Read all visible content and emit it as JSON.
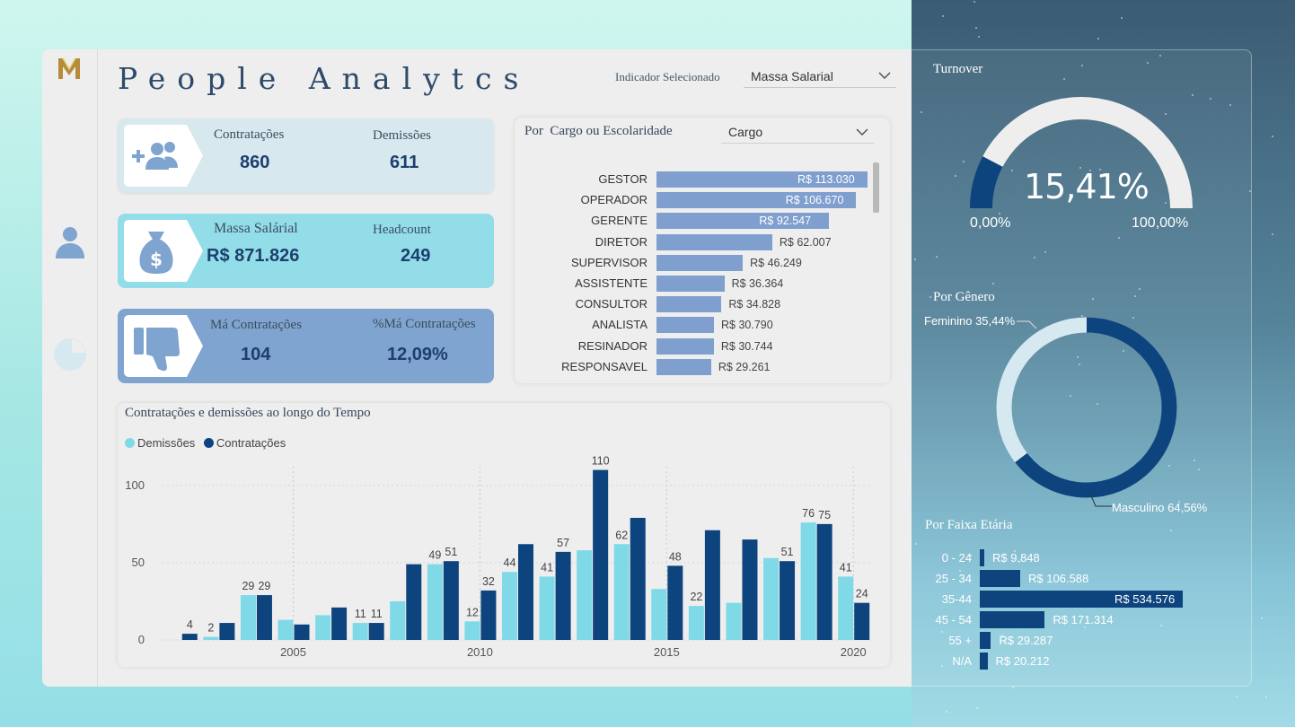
{
  "header": {
    "title": "People Analytcs",
    "indicator_label": "Indicador Selecionado",
    "indicator_value": "Massa Salarial"
  },
  "kpis": {
    "hires_label": "Contratações",
    "hires_value": "860",
    "fires_label": "Demissões",
    "fires_value": "611",
    "payroll_label": "Massa Salárial",
    "payroll_value": "R$ 871.826",
    "headcount_label": "Headcount",
    "headcount_value": "249",
    "bad_hires_label": "Má Contratações",
    "bad_hires_value": "104",
    "bad_hires_pct_label": "%Má Contratações",
    "bad_hires_pct_value": "12,09%"
  },
  "cargo": {
    "title_prefix": "Por",
    "title": "Cargo ou Escolaridade",
    "select_value": "Cargo",
    "rows": [
      {
        "label": "GESTOR",
        "value": 113030,
        "text": "R$ 113.030"
      },
      {
        "label": "OPERADOR",
        "value": 106670,
        "text": "R$ 106.670"
      },
      {
        "label": "GERENTE",
        "value": 92547,
        "text": "R$ 92.547"
      },
      {
        "label": "DIRETOR",
        "value": 62007,
        "text": "R$ 62.007"
      },
      {
        "label": "SUPERVISOR",
        "value": 46249,
        "text": "R$ 46.249"
      },
      {
        "label": "ASSISTENTE",
        "value": 36364,
        "text": "R$ 36.364"
      },
      {
        "label": "CONSULTOR",
        "value": 34828,
        "text": "R$ 34.828"
      },
      {
        "label": "ANALISTA",
        "value": 30790,
        "text": "R$ 30.790"
      },
      {
        "label": "RESINADOR",
        "value": 30744,
        "text": "R$ 30.744"
      },
      {
        "label": "RESPONSAVEL",
        "value": 29261,
        "text": "R$ 29.261"
      }
    ]
  },
  "turnover": {
    "title": "Turnover",
    "value": 15.41,
    "value_text": "15,41%",
    "min_text": "0,00%",
    "max_text": "100,00%"
  },
  "gender": {
    "title": "Por Gênero",
    "feminino_text": "Feminino 35,44%",
    "masculino_text": "Masculino 64,56%",
    "feminino": 35.44,
    "masculino": 64.56
  },
  "age": {
    "title": "Por Faixa Etária",
    "rows": [
      {
        "label": "0 - 24",
        "value": 9848,
        "text": "R$ 9.848"
      },
      {
        "label": "25 - 34",
        "value": 106588,
        "text": "R$ 106.588"
      },
      {
        "label": "35-44",
        "value": 534576,
        "text": "R$ 534.576"
      },
      {
        "label": "45 - 54",
        "value": 171314,
        "text": "R$ 171.314"
      },
      {
        "label": "55 +",
        "value": 29287,
        "text": "R$ 29.287"
      },
      {
        "label": "N/A",
        "value": 20212,
        "text": "R$ 20.212"
      }
    ]
  },
  "colors": {
    "demissoes": "#7fd9e6",
    "contratacoes": "#0d447e",
    "cargo_bar": "#7f9fcf",
    "gauge_fill": "#0d447e",
    "gauge_track": "#efeeee"
  },
  "timeline": {
    "title": "Contratações e demissões ao longo do Tempo",
    "legend_demissoes": "Demissões",
    "legend_contratacoes": "Contratações"
  },
  "chart_data": {
    "type": "bar",
    "title": "Contratações e demissões ao longo do Tempo",
    "x": [
      2002,
      2003,
      2004,
      2005,
      2006,
      2007,
      2008,
      2009,
      2010,
      2011,
      2012,
      2013,
      2014,
      2015,
      2016,
      2017,
      2018,
      2019,
      2020
    ],
    "x_ticks": [
      "2005",
      "2010",
      "2015",
      "2020"
    ],
    "y_ticks": [
      "0",
      "50",
      "100"
    ],
    "ylim": [
      0,
      115
    ],
    "series": [
      {
        "name": "Demissões",
        "values": [
          0,
          2,
          29,
          13,
          16,
          11,
          25,
          49,
          12,
          44,
          41,
          58,
          62,
          33,
          22,
          24,
          53,
          76,
          41
        ],
        "labels": [
          "",
          "2",
          "29",
          "",
          "",
          "11",
          "",
          "49",
          "12",
          "44",
          "41",
          "",
          "62",
          "",
          "22",
          "",
          "",
          "76",
          "41"
        ]
      },
      {
        "name": "Contratações",
        "values": [
          4,
          11,
          29,
          10,
          21,
          11,
          49,
          51,
          32,
          62,
          57,
          110,
          79,
          48,
          71,
          65,
          51,
          75,
          24
        ],
        "labels": [
          "4",
          "",
          "29",
          "",
          "",
          "11",
          "",
          "51",
          "32",
          "",
          "57",
          "110",
          "",
          "48",
          "",
          "",
          "51",
          "75",
          "24"
        ]
      }
    ]
  }
}
